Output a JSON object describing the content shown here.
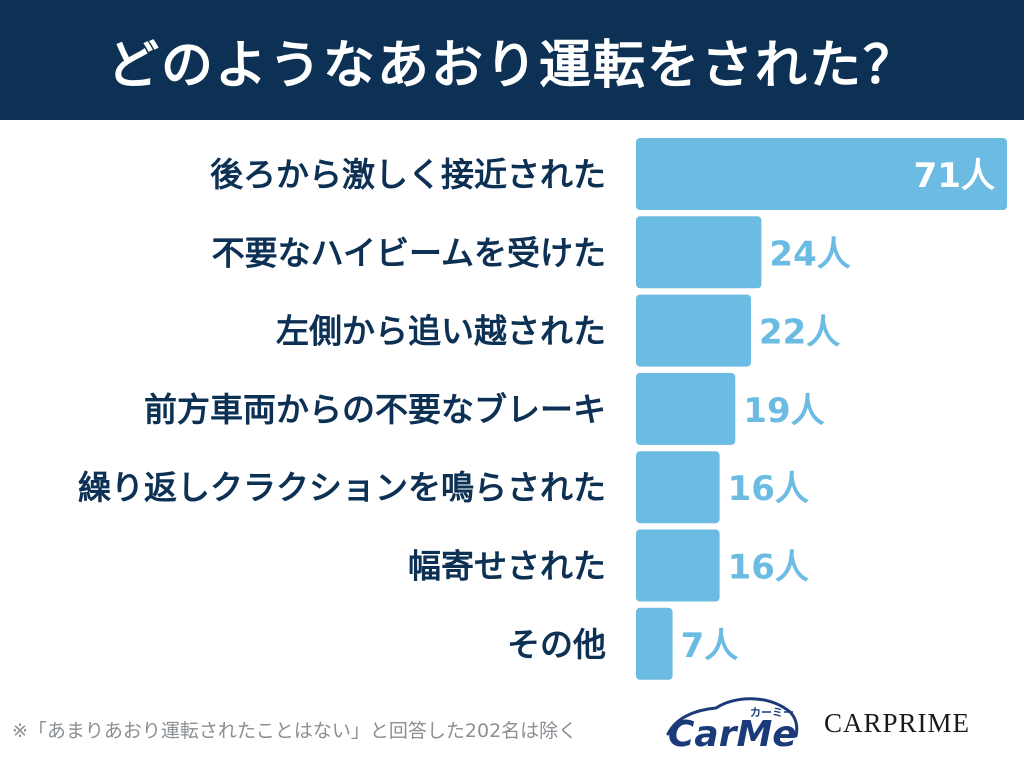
{
  "header": {
    "title": "どのようなあおり運転をされた？"
  },
  "chart_data": {
    "type": "bar",
    "orientation": "horizontal",
    "categories": [
      "後ろから激しく接近された",
      "不要なハイビームを受けた",
      "左側から追い越された",
      "前方車両からの不要なブレーキ",
      "繰り返しクラクションを鳴らされた",
      "幅寄せされた",
      "その他"
    ],
    "values": [
      71,
      24,
      22,
      19,
      16,
      16,
      7
    ],
    "value_labels": [
      "71人",
      "24人",
      "22人",
      "19人",
      "16人",
      "16人",
      "7人"
    ],
    "unit": "人",
    "xlim": [
      0,
      71
    ],
    "grid": false,
    "bar_color": "#6bbbe3",
    "label_color": "#0d3154",
    "value_label_color": "#6bbbe3",
    "value_label_inside_color": "#ffffff"
  },
  "footer": {
    "note": "※「あまりあおり運転されたことはない」と回答した202名は除く"
  },
  "logos": {
    "carme_text": "CarMe",
    "carme_kana": "カーミー",
    "carprime": "CARPRIME"
  },
  "colors": {
    "header_bg": "#0d3154",
    "header_text": "#ffffff",
    "bar": "#6bbbe3",
    "category_text": "#0d3154",
    "footer_text": "#8a8f94",
    "carme_navy": "#1b3a7a"
  }
}
